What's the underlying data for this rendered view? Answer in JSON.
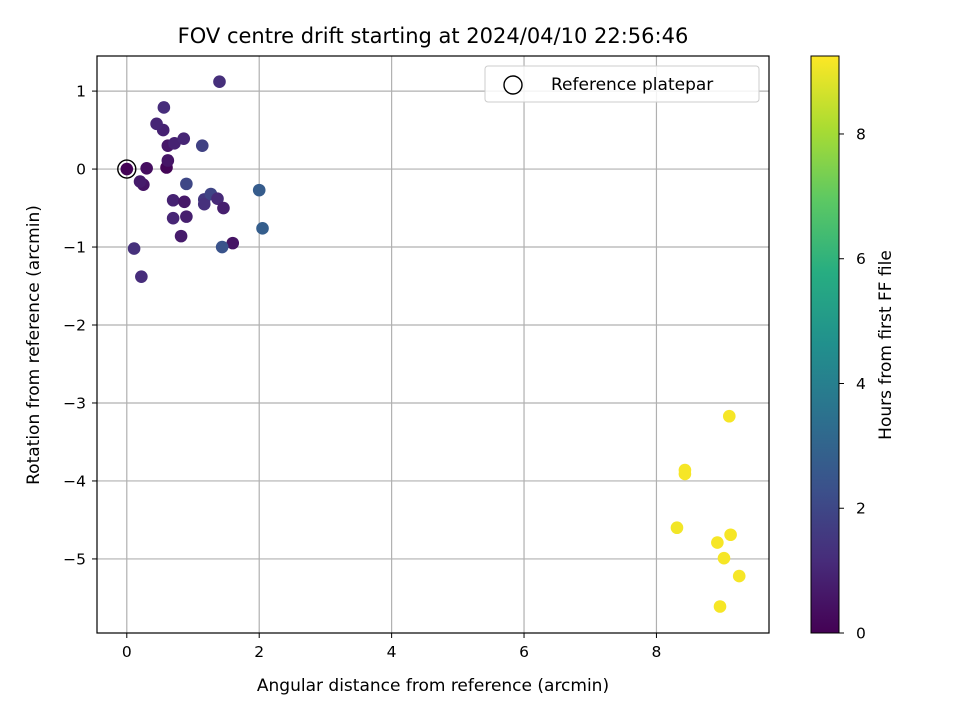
{
  "chart_data": {
    "type": "scatter",
    "title": "FOV centre drift starting at 2024/04/10 22:56:46",
    "xlabel": "Angular distance from reference (arcmin)",
    "ylabel": "Rotation from reference (arcmin)",
    "xlim": [
      -0.45,
      9.7
    ],
    "ylim": [
      -5.95,
      1.45
    ],
    "xticks": [
      0,
      2,
      4,
      6,
      8
    ],
    "yticks": [
      1,
      0,
      -1,
      -2,
      -3,
      -4,
      -5
    ],
    "xtick_labels": [
      "0",
      "2",
      "4",
      "6",
      "8"
    ],
    "ytick_labels": [
      "1",
      "0",
      "−1",
      "−2",
      "−3",
      "−4",
      "−5"
    ],
    "grid": true,
    "colormap": "viridis",
    "colorbar": {
      "label": "Hours from first FF file",
      "range": [
        0,
        9.25
      ],
      "ticks": [
        0,
        2,
        4,
        6,
        8
      ],
      "tick_labels": [
        "0",
        "2",
        "4",
        "6",
        "8"
      ]
    },
    "legend": {
      "position": "top-right",
      "entries": [
        "Reference platepar"
      ]
    },
    "reference_point": {
      "x": 0,
      "y": 0
    },
    "points": [
      {
        "x": 0.0,
        "y": 0.0,
        "h": 0.05
      },
      {
        "x": 0.6,
        "y": 0.02,
        "h": 0.1
      },
      {
        "x": 0.3,
        "y": 0.01,
        "h": 0.35
      },
      {
        "x": 0.25,
        "y": -0.2,
        "h": 0.5
      },
      {
        "x": 0.2,
        "y": -0.16,
        "h": 0.7
      },
      {
        "x": 0.62,
        "y": 0.11,
        "h": 0.55
      },
      {
        "x": 0.62,
        "y": 0.3,
        "h": 0.6
      },
      {
        "x": 0.72,
        "y": 0.33,
        "h": 0.9
      },
      {
        "x": 0.55,
        "y": 0.5,
        "h": 0.9
      },
      {
        "x": 0.45,
        "y": 0.58,
        "h": 1.0
      },
      {
        "x": 0.56,
        "y": 0.79,
        "h": 1.2
      },
      {
        "x": 0.86,
        "y": 0.39,
        "h": 1.0
      },
      {
        "x": 1.14,
        "y": 0.3,
        "h": 1.8
      },
      {
        "x": 1.4,
        "y": 1.12,
        "h": 1.25
      },
      {
        "x": 0.7,
        "y": -0.4,
        "h": 0.9
      },
      {
        "x": 0.87,
        "y": -0.42,
        "h": 0.6
      },
      {
        "x": 0.9,
        "y": -0.19,
        "h": 2.0
      },
      {
        "x": 0.7,
        "y": -0.63,
        "h": 1.0
      },
      {
        "x": 0.9,
        "y": -0.61,
        "h": 0.8
      },
      {
        "x": 0.82,
        "y": -0.86,
        "h": 0.7
      },
      {
        "x": 1.17,
        "y": -0.39,
        "h": 1.5
      },
      {
        "x": 1.17,
        "y": -0.45,
        "h": 1.3
      },
      {
        "x": 1.27,
        "y": -0.32,
        "h": 1.9
      },
      {
        "x": 1.37,
        "y": -0.38,
        "h": 1.1
      },
      {
        "x": 1.46,
        "y": -0.5,
        "h": 0.8
      },
      {
        "x": 1.6,
        "y": -0.95,
        "h": 0.5
      },
      {
        "x": 1.44,
        "y": -1.0,
        "h": 2.4
      },
      {
        "x": 2.05,
        "y": -0.76,
        "h": 2.8
      },
      {
        "x": 2.0,
        "y": -0.27,
        "h": 2.7
      },
      {
        "x": 0.11,
        "y": -1.02,
        "h": 1.3
      },
      {
        "x": 0.22,
        "y": -1.38,
        "h": 1.2
      },
      {
        "x": 9.1,
        "y": -3.17,
        "h": 9.15
      },
      {
        "x": 8.43,
        "y": -3.86,
        "h": 9.15
      },
      {
        "x": 8.43,
        "y": -3.91,
        "h": 9.15
      },
      {
        "x": 8.31,
        "y": -4.6,
        "h": 9.1
      },
      {
        "x": 9.12,
        "y": -4.69,
        "h": 9.15
      },
      {
        "x": 8.92,
        "y": -4.79,
        "h": 9.15
      },
      {
        "x": 9.02,
        "y": -4.99,
        "h": 9.15
      },
      {
        "x": 9.25,
        "y": -5.22,
        "h": 9.15
      },
      {
        "x": 8.96,
        "y": -5.61,
        "h": 9.15
      }
    ]
  }
}
